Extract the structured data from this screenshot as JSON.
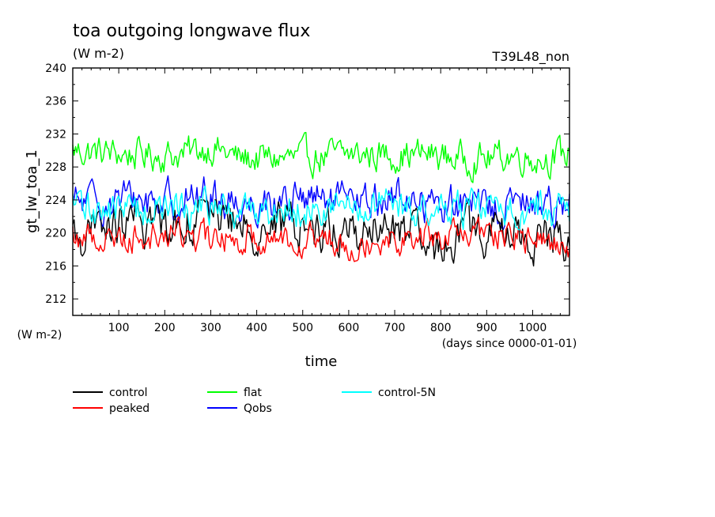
{
  "chart_data": {
    "type": "line",
    "title": "toa outgoing longwave flux",
    "units": "(W m-2)",
    "run_label": "T39L48_non",
    "ylabel": "gt_lw_toa_1",
    "y_units": "(W m-2)",
    "xlabel": "time",
    "x_units": "(days since 0000-01-01)",
    "xlim": [
      0,
      1080
    ],
    "ylim": [
      210,
      240
    ],
    "x_ticks": [
      100,
      200,
      300,
      400,
      500,
      600,
      700,
      800,
      900,
      1000
    ],
    "y_ticks": [
      212,
      216,
      220,
      224,
      228,
      232,
      236,
      240
    ],
    "grid": false,
    "legend_position": "bottom",
    "series": [
      {
        "name": "control",
        "color": "#000000",
        "mean": 220.8,
        "amp": 2.2,
        "min": 216.0,
        "max": 224.0,
        "x": [
          0,
          120,
          240,
          300,
          360,
          480,
          600,
          720,
          780,
          840,
          900,
          960,
          1020,
          1080
        ],
        "values": [
          219.5,
          221.0,
          221.5,
          223.5,
          220.5,
          221.0,
          220.0,
          220.5,
          217.0,
          220.5,
          220.0,
          220.0,
          219.0,
          219.5
        ]
      },
      {
        "name": "peaked",
        "color": "#ff0000",
        "mean": 219.7,
        "amp": 1.5,
        "min": 215.0,
        "max": 223.0,
        "x": [
          0,
          120,
          240,
          300,
          360,
          480,
          600,
          720,
          780,
          840,
          900,
          960,
          1020,
          1080
        ],
        "values": [
          219.5,
          219.5,
          220.0,
          219.0,
          219.5,
          219.5,
          219.0,
          219.5,
          219.5,
          219.5,
          220.0,
          219.5,
          219.0,
          218.5
        ]
      },
      {
        "name": "flat",
        "color": "#00ff00",
        "mean": 229.4,
        "amp": 1.6,
        "min": 226.0,
        "max": 233.0,
        "x": [
          0,
          120,
          240,
          300,
          360,
          480,
          600,
          720,
          780,
          840,
          900,
          960,
          1020,
          1080
        ],
        "values": [
          230.0,
          229.5,
          229.5,
          230.5,
          229.0,
          229.0,
          229.5,
          229.5,
          229.5,
          229.0,
          229.0,
          229.5,
          229.0,
          229.5
        ]
      },
      {
        "name": "Qobs",
        "color": "#0000ff",
        "mean": 223.5,
        "amp": 1.9,
        "min": 218.0,
        "max": 229.0,
        "x": [
          0,
          120,
          240,
          300,
          360,
          480,
          600,
          720,
          780,
          840,
          900,
          960,
          1020,
          1080
        ],
        "values": [
          223.5,
          224.0,
          224.0,
          224.5,
          223.5,
          224.0,
          223.5,
          224.5,
          223.5,
          223.5,
          223.0,
          223.5,
          223.5,
          224.0
        ]
      },
      {
        "name": "control-5N",
        "color": "#00ffff",
        "mean": 222.9,
        "amp": 1.8,
        "min": 218.0,
        "max": 226.0,
        "x": [
          0,
          120,
          240,
          300,
          360,
          480,
          600,
          720,
          780,
          840,
          900,
          960,
          1020,
          1080
        ],
        "values": [
          223.0,
          223.0,
          223.0,
          223.0,
          222.5,
          223.0,
          223.0,
          223.0,
          222.5,
          223.0,
          222.5,
          223.0,
          223.0,
          223.0
        ]
      }
    ]
  }
}
